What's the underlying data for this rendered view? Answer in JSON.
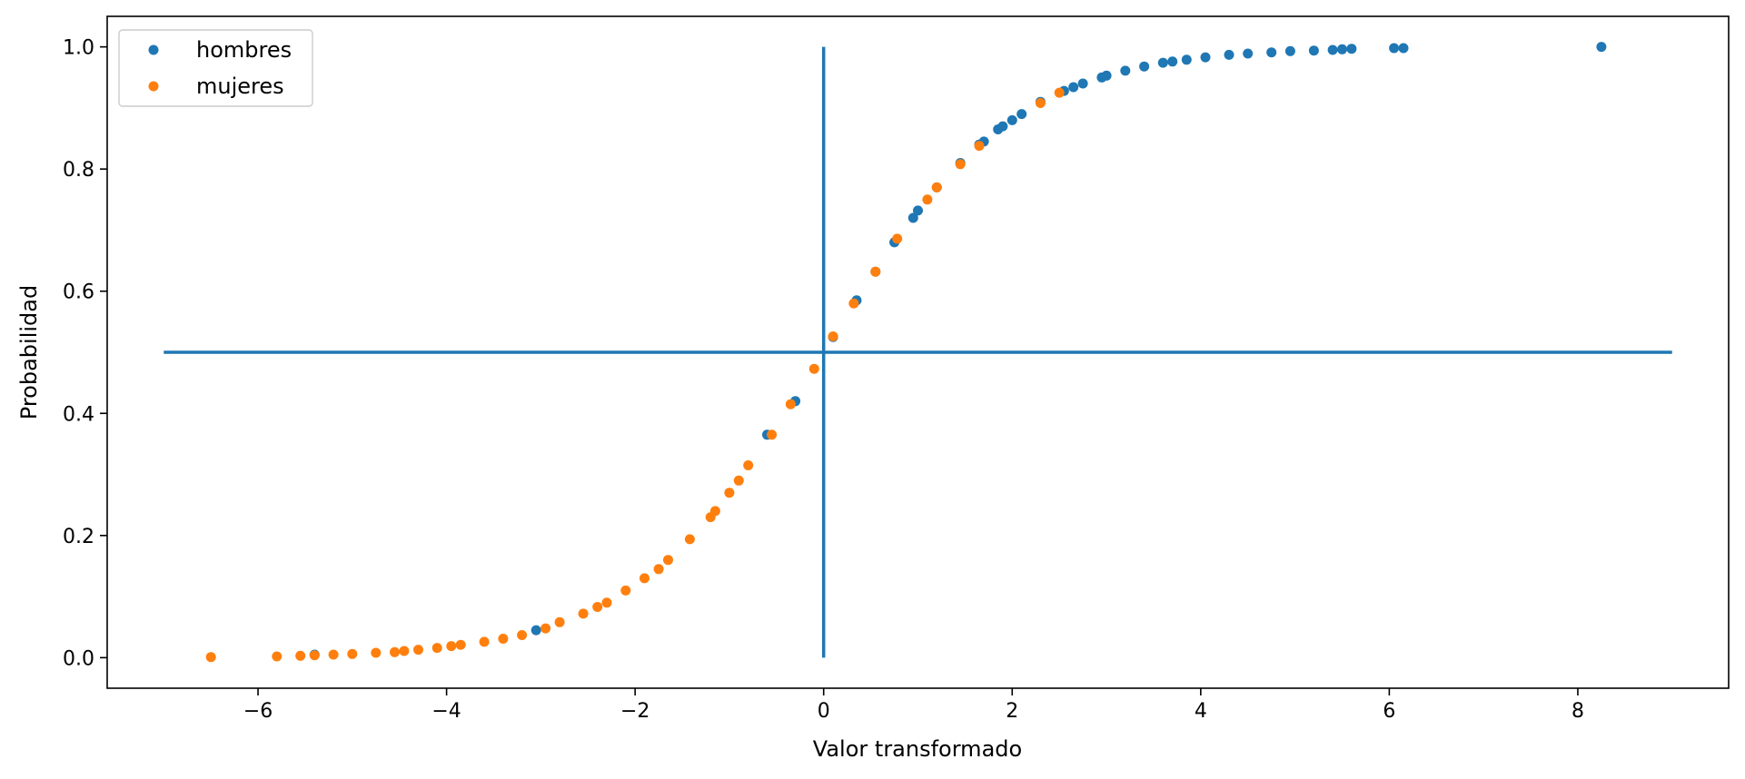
{
  "chart_data": {
    "type": "scatter",
    "title": "",
    "xlabel": "Valor transformado",
    "ylabel": "Probabilidad",
    "xlim": [
      -7.6,
      9.6
    ],
    "ylim": [
      -0.05,
      1.05
    ],
    "xticks": [
      -6,
      -4,
      -2,
      0,
      2,
      4,
      6,
      8
    ],
    "xtick_labels": [
      "−6",
      "−4",
      "−2",
      "0",
      "2",
      "4",
      "6",
      "8"
    ],
    "yticks": [
      0.0,
      0.2,
      0.4,
      0.6,
      0.8,
      1.0
    ],
    "ytick_labels": [
      "0.0",
      "0.2",
      "0.4",
      "0.6",
      "0.8",
      "1.0"
    ],
    "grid": false,
    "legend_position": "top-left",
    "reference_lines": [
      {
        "orientation": "vertical",
        "x": 0,
        "y_range": [
          0,
          1
        ],
        "color": "#1f77b4"
      },
      {
        "orientation": "horizontal",
        "y": 0.5,
        "x_range": [
          -7,
          9
        ],
        "color": "#1f77b4"
      }
    ],
    "series": [
      {
        "name": "hombres",
        "color": "#1f77b4",
        "x": [
          -5.4,
          -3.05,
          -0.6,
          -0.3,
          0.1,
          0.35,
          0.55,
          0.75,
          0.95,
          1.0,
          1.2,
          1.45,
          1.65,
          1.7,
          1.85,
          1.9,
          2.0,
          2.1,
          2.3,
          2.55,
          2.65,
          2.75,
          2.95,
          3.0,
          3.2,
          3.4,
          3.6,
          3.7,
          3.85,
          4.05,
          4.3,
          4.5,
          4.75,
          4.95,
          5.2,
          5.4,
          5.5,
          5.6,
          6.05,
          6.15,
          8.25
        ],
        "y": [
          0.005,
          0.045,
          0.365,
          0.42,
          0.525,
          0.585,
          0.632,
          0.68,
          0.72,
          0.732,
          0.77,
          0.81,
          0.84,
          0.845,
          0.865,
          0.87,
          0.88,
          0.89,
          0.91,
          0.928,
          0.934,
          0.94,
          0.95,
          0.953,
          0.961,
          0.968,
          0.974,
          0.976,
          0.979,
          0.983,
          0.987,
          0.989,
          0.991,
          0.993,
          0.994,
          0.995,
          0.996,
          0.997,
          0.998,
          0.998,
          1.0
        ]
      },
      {
        "name": "mujeres",
        "color": "#ff7f0e",
        "x": [
          -6.5,
          -5.8,
          -5.55,
          -5.4,
          -5.2,
          -5.0,
          -4.75,
          -4.55,
          -4.45,
          -4.3,
          -4.1,
          -3.95,
          -3.85,
          -3.6,
          -3.4,
          -3.2,
          -2.95,
          -2.8,
          -2.55,
          -2.4,
          -2.3,
          -2.1,
          -1.9,
          -1.75,
          -1.65,
          -1.42,
          -1.2,
          -1.15,
          -1.0,
          -0.9,
          -0.8,
          -0.55,
          -0.35,
          -0.1,
          0.1,
          0.32,
          0.55,
          0.78,
          1.1,
          1.2,
          1.45,
          1.65,
          2.3,
          2.5
        ],
        "y": [
          0.001,
          0.002,
          0.003,
          0.004,
          0.005,
          0.006,
          0.008,
          0.009,
          0.011,
          0.013,
          0.016,
          0.019,
          0.021,
          0.026,
          0.031,
          0.037,
          0.048,
          0.058,
          0.072,
          0.083,
          0.09,
          0.11,
          0.13,
          0.145,
          0.16,
          0.194,
          0.23,
          0.24,
          0.27,
          0.29,
          0.315,
          0.365,
          0.415,
          0.473,
          0.526,
          0.58,
          0.632,
          0.686,
          0.75,
          0.77,
          0.808,
          0.838,
          0.908,
          0.925
        ]
      }
    ]
  }
}
